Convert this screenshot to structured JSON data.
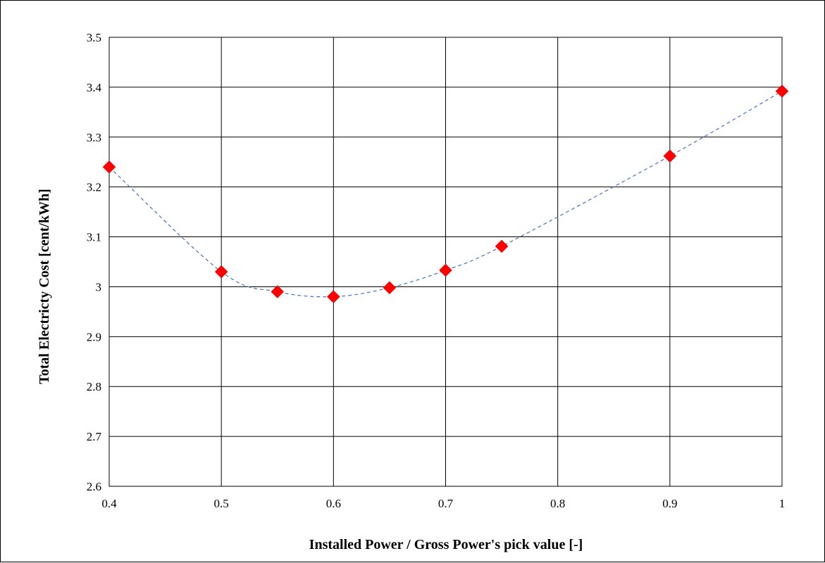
{
  "chart_data": {
    "type": "scatter",
    "title": "",
    "xlabel": "Installed Power / Gross Power's pick value [-]",
    "ylabel": "Total Electricty Cost [cent/kWh]",
    "xlim": [
      0.4,
      1.0
    ],
    "ylim": [
      2.6,
      3.5
    ],
    "xticks": [
      0.4,
      0.5,
      0.6,
      0.7,
      0.8,
      0.9,
      1.0
    ],
    "xtick_labels": [
      "0.4",
      "0.5",
      "0.6",
      "0.7",
      "0.8",
      "0.9",
      "1"
    ],
    "yticks": [
      2.6,
      2.7,
      2.8,
      2.9,
      3.0,
      3.1,
      3.2,
      3.3,
      3.4,
      3.5
    ],
    "ytick_labels": [
      "2.6",
      "2.7",
      "2.8",
      "2.9",
      "3",
      "3.1",
      "3.2",
      "3.3",
      "3.4",
      "3.5"
    ],
    "grid": true,
    "legend": "none",
    "series": [
      {
        "marker": "diamond",
        "marker_color": "#ff0000",
        "line_style": "dashed",
        "line_color": "#4472c4",
        "smooth": true,
        "x": [
          0.4,
          0.5,
          0.55,
          0.6,
          0.65,
          0.7,
          0.75,
          0.9,
          1.0
        ],
        "y": [
          3.24,
          3.03,
          2.99,
          2.98,
          2.998,
          3.033,
          3.081,
          3.262,
          3.392
        ]
      }
    ]
  }
}
